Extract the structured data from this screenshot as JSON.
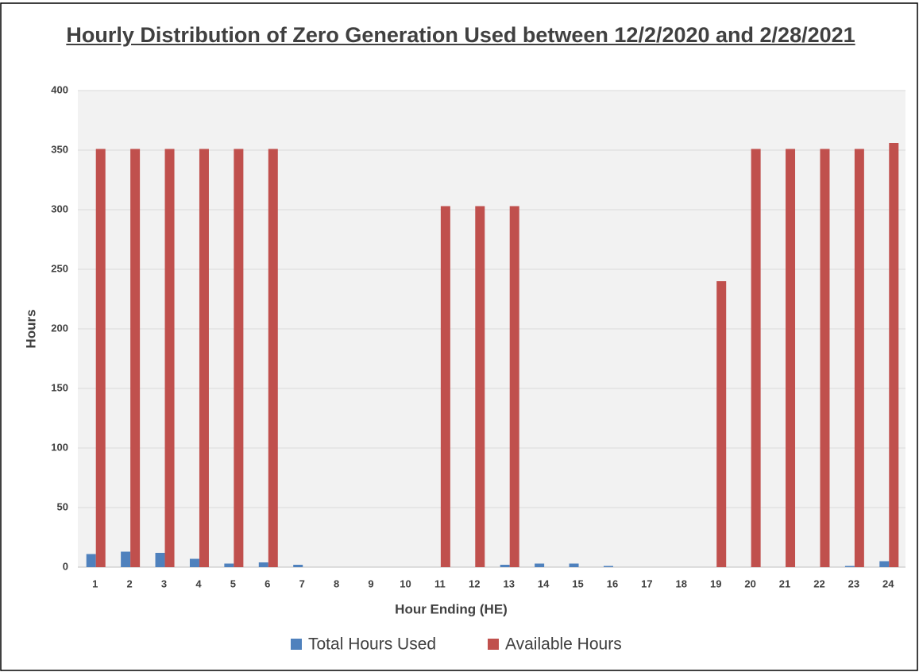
{
  "chart_data": {
    "type": "bar",
    "title": "Hourly Distribution of Zero Generation Used between 12/2/2020 and 2/28/2021",
    "x_label": "Hour Ending (HE)",
    "y_label": "Hours",
    "categories": [
      "1",
      "2",
      "3",
      "4",
      "5",
      "6",
      "7",
      "8",
      "9",
      "10",
      "11",
      "12",
      "13",
      "14",
      "15",
      "16",
      "17",
      "18",
      "19",
      "20",
      "21",
      "22",
      "23",
      "24"
    ],
    "series": [
      {
        "name": "Total Hours Used",
        "color": "#4f81bd",
        "values": [
          11,
          13,
          12,
          7,
          3,
          4,
          2,
          0,
          0,
          0,
          0,
          0,
          2,
          3,
          3,
          1,
          0,
          0,
          0,
          0,
          0,
          0,
          1,
          5
        ]
      },
      {
        "name": "Available Hours",
        "color": "#c0504d",
        "values": [
          351,
          351,
          351,
          351,
          351,
          351,
          0,
          0,
          0,
          0,
          303,
          303,
          303,
          0,
          0,
          0,
          0,
          0,
          240,
          351,
          351,
          351,
          351,
          356
        ]
      }
    ],
    "ylim": [
      0,
      400
    ],
    "yticks": [
      0,
      50,
      100,
      150,
      200,
      250,
      300,
      350,
      400
    ],
    "grid": true,
    "legend": "bottom"
  }
}
